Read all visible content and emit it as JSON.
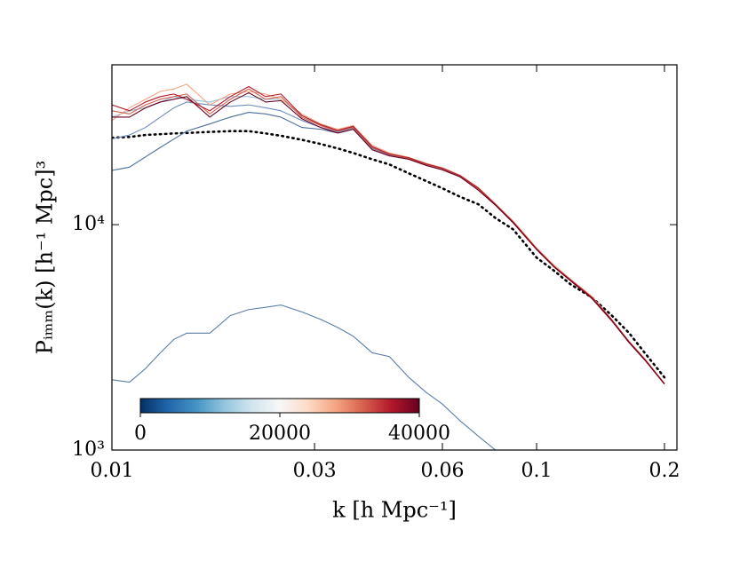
{
  "chart_data": {
    "type": "line",
    "xlabel": "k [h Mpc⁻¹]",
    "ylabel": "Pᵢₘₘ(k) [h⁻¹ Mpc]³",
    "xscale": "log",
    "yscale": "log",
    "xlim": [
      0.01,
      0.214
    ],
    "ylim": [
      1000,
      51200
    ],
    "xticks": [
      0.01,
      0.03,
      0.06,
      0.1,
      0.2
    ],
    "yticks": [
      {
        "value": 1000,
        "label": "10³"
      },
      {
        "value": 10000,
        "label": "10⁴"
      }
    ],
    "x": [
      0.01,
      0.011,
      0.012,
      0.013,
      0.014,
      0.015,
      0.017,
      0.019,
      0.021,
      0.023,
      0.025,
      0.028,
      0.031,
      0.034,
      0.037,
      0.041,
      0.045,
      0.05,
      0.055,
      0.06,
      0.066,
      0.073,
      0.08,
      0.088,
      0.1,
      0.11,
      0.12,
      0.135,
      0.15,
      0.165,
      0.18,
      0.2
    ],
    "series": [
      {
        "color": "#000000",
        "linestyle": "dotted",
        "values": [
          24300,
          24500,
          25000,
          25200,
          25400,
          25500,
          25800,
          26000,
          26000,
          25400,
          24800,
          23800,
          22800,
          21800,
          20800,
          19500,
          18500,
          16900,
          15600,
          14500,
          13300,
          12300,
          10700,
          9540,
          7140,
          6240,
          5450,
          4750,
          3970,
          3310,
          2690,
          2100
        ]
      },
      {
        "color": "#5a7ea8",
        "values": [
          2050,
          2000,
          2300,
          2700,
          3100,
          3300,
          3300,
          3950,
          4200,
          4300,
          4400,
          4100,
          3800,
          3500,
          3200,
          2700,
          2600,
          2100,
          1800,
          1600,
          1350,
          1150,
          1000,
          null,
          null,
          null,
          null,
          null,
          null,
          null,
          null,
          null
        ]
      },
      {
        "color": "#4a6f9a",
        "values": [
          17400,
          18000,
          20000,
          22000,
          24000,
          26000,
          28000,
          30000,
          31500,
          31000,
          30000,
          27000,
          26500,
          25500,
          26500,
          21800,
          20400,
          19600,
          18400,
          17600,
          16400,
          14300,
          12200,
          10200,
          7800,
          6500,
          5680,
          4740,
          3780,
          3010,
          2510,
          1970
        ]
      },
      {
        "color": "#6c8ebf",
        "values": [
          24000,
          25000,
          27000,
          30000,
          33000,
          35000,
          34000,
          33500,
          34000,
          33000,
          32000,
          29000,
          27000,
          25800,
          26800,
          21900,
          20500,
          19700,
          18500,
          17700,
          16500,
          14400,
          12300,
          10300,
          7830,
          6530,
          5700,
          4750,
          3790,
          3020,
          2520,
          1970
        ]
      },
      {
        "color": "#92c5de",
        "values": [
          30000,
          32000,
          33000,
          35000,
          37000,
          36000,
          35000,
          37000,
          37000,
          36000,
          36000,
          30500,
          27600,
          26100,
          27100,
          22100,
          20500,
          19700,
          18500,
          17700,
          16500,
          14400,
          12300,
          10300,
          7830,
          6530,
          5700,
          4750,
          3790,
          3020,
          2520,
          1970
        ]
      },
      {
        "color": "#f4a582",
        "values": [
          29000,
          33000,
          36000,
          39000,
          40000,
          42000,
          34000,
          38000,
          39000,
          38000,
          36000,
          31000,
          28000,
          26500,
          27500,
          22500,
          20800,
          19900,
          18700,
          17900,
          16600,
          14600,
          12400,
          10400,
          7900,
          6600,
          5750,
          4800,
          3820,
          3040,
          2540,
          1980
        ]
      },
      {
        "color": "#d6604d",
        "values": [
          32000,
          31000,
          34000,
          36000,
          37000,
          38000,
          31000,
          36000,
          40000,
          36000,
          37000,
          30000,
          27500,
          26000,
          27000,
          22000,
          20500,
          19700,
          18500,
          17700,
          16500,
          14400,
          12300,
          10300,
          7830,
          6530,
          5700,
          4750,
          3790,
          3020,
          2520,
          1970
        ]
      },
      {
        "color": "#b2182b",
        "values": [
          34000,
          32000,
          35000,
          37000,
          38000,
          36000,
          32000,
          37000,
          41000,
          37000,
          38000,
          30500,
          27800,
          26200,
          27300,
          22200,
          20600,
          19800,
          18600,
          17800,
          16500,
          14500,
          12300,
          10300,
          7800,
          6520,
          5700,
          4760,
          3800,
          3030,
          2520,
          1970
        ]
      },
      {
        "color": "#67001f",
        "values": [
          30000,
          30000,
          33000,
          35000,
          36000,
          37000,
          30000,
          35000,
          38500,
          35000,
          35500,
          29500,
          27000,
          25500,
          26500,
          21500,
          20200,
          19500,
          18300,
          17500,
          16300,
          14200,
          12200,
          10200,
          7750,
          6480,
          5650,
          4700,
          3760,
          3000,
          2500,
          1960
        ]
      }
    ],
    "colorbar": {
      "lim": [
        0,
        40000
      ],
      "ticks": [
        0,
        20000,
        40000
      ]
    }
  }
}
